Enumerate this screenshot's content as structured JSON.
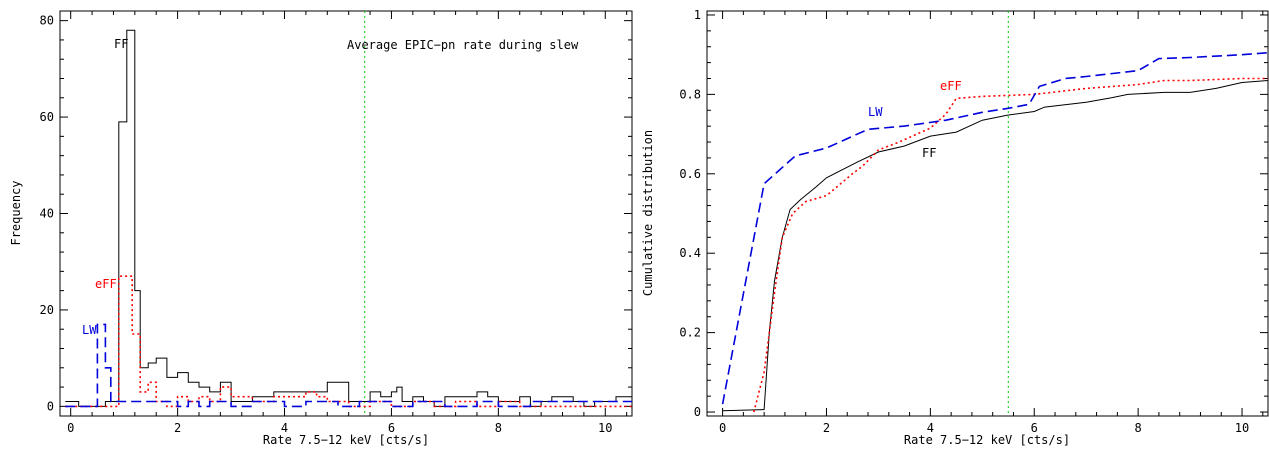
{
  "chart_data": [
    {
      "type": "histogram",
      "title": "",
      "xlabel": "Rate 7.5−12 keV [cts/s]",
      "ylabel": "Frequency",
      "xlim": [
        -0.2,
        10.5
      ],
      "ylim": [
        -2,
        82
      ],
      "x_ticks": [
        0,
        2,
        4,
        6,
        8,
        10
      ],
      "y_ticks": [
        0,
        20,
        40,
        60,
        80
      ],
      "annotation": "Average EPIC−pn rate during slew",
      "vline_x": 5.5,
      "series": [
        {
          "name": "FF",
          "color": "#000000",
          "style": "solid",
          "edges": [
            -0.1,
            0.15,
            0.65,
            0.9,
            1.05,
            1.2,
            1.3,
            1.45,
            1.6,
            1.8,
            2.0,
            2.2,
            2.4,
            2.6,
            2.8,
            3.0,
            3.4,
            3.8,
            4.8,
            5.2,
            5.6,
            5.8,
            6.0,
            6.1,
            6.2,
            6.4,
            6.6,
            6.8,
            7.0,
            7.6,
            7.8,
            8.0,
            8.4,
            8.6,
            8.8,
            9.0,
            9.4,
            9.6,
            9.8,
            10.2,
            10.5
          ],
          "values": [
            1,
            0,
            1,
            59,
            78,
            24,
            8,
            9,
            10,
            6,
            7,
            5,
            4,
            3,
            5,
            1,
            2,
            3,
            5,
            1,
            3,
            2,
            3,
            4,
            1,
            2,
            1,
            0,
            2,
            3,
            2,
            1,
            2,
            0,
            1,
            2,
            1,
            0,
            1,
            2
          ]
        },
        {
          "name": "eFF",
          "color": "#ff0000",
          "style": "dotted",
          "edges": [
            -0.1,
            0.9,
            1.15,
            1.3,
            1.45,
            1.6,
            1.8,
            2.0,
            2.2,
            2.4,
            2.6,
            2.8,
            3.0,
            3.4,
            3.8,
            4.4,
            4.6,
            4.8,
            5.2,
            5.6,
            6.0,
            6.4,
            6.8,
            7.2,
            7.6,
            8.0,
            8.4,
            10.5
          ],
          "values": [
            0,
            27,
            15,
            3,
            5,
            1,
            0,
            2,
            1,
            2,
            1,
            4,
            2,
            1,
            2,
            3,
            2,
            1,
            0,
            1,
            0,
            1,
            0,
            1,
            0,
            1,
            0
          ]
        },
        {
          "name": "LW",
          "color": "#0000dd",
          "style": "dashed",
          "edges": [
            -0.1,
            0.5,
            0.65,
            0.75,
            0.9,
            2.0,
            2.2,
            2.4,
            2.6,
            3.0,
            3.4,
            4.0,
            4.4,
            5.0,
            5.4,
            6.0,
            6.4,
            7.0,
            7.6,
            8.0,
            8.6,
            10.5
          ],
          "values": [
            0,
            17,
            8,
            1,
            1,
            0,
            1,
            0,
            1,
            0,
            1,
            0,
            1,
            0,
            1,
            0,
            1,
            0,
            1,
            0,
            1
          ]
        }
      ]
    },
    {
      "type": "line",
      "title": "",
      "xlabel": "Rate 7.5−12 keV [cts/s]",
      "ylabel": "Cumulative distribution",
      "xlim": [
        -0.3,
        10.5
      ],
      "ylim": [
        -0.01,
        1.01
      ],
      "x_ticks": [
        0,
        2,
        4,
        6,
        8,
        10
      ],
      "y_ticks": [
        0,
        0.2,
        0.4,
        0.6,
        0.8,
        1
      ],
      "vline_x": 5.5,
      "series": [
        {
          "name": "FF",
          "color": "#000000",
          "style": "solid",
          "x": [
            0,
            0.8,
            0.9,
            1.0,
            1.15,
            1.3,
            1.5,
            1.8,
            2.0,
            2.3,
            2.6,
            3.0,
            3.5,
            4.0,
            4.5,
            5.0,
            5.5,
            6.0,
            6.2,
            7.0,
            7.5,
            7.8,
            8.5,
            9.0,
            9.5,
            10.0,
            10.5
          ],
          "y": [
            0.003,
            0.006,
            0.2,
            0.33,
            0.44,
            0.51,
            0.535,
            0.567,
            0.59,
            0.61,
            0.63,
            0.655,
            0.67,
            0.695,
            0.705,
            0.735,
            0.748,
            0.757,
            0.768,
            0.78,
            0.792,
            0.8,
            0.805,
            0.805,
            0.815,
            0.83,
            0.835
          ]
        },
        {
          "name": "eFF",
          "color": "#ff0000",
          "style": "dotted",
          "x": [
            0.6,
            0.8,
            1.0,
            1.15,
            1.35,
            1.6,
            2.0,
            2.5,
            2.7,
            3.0,
            3.4,
            4.0,
            4.3,
            4.5,
            5.0,
            6.0,
            7.0,
            8.0,
            8.5,
            9.0,
            10.0,
            10.5
          ],
          "y": [
            0.0,
            0.1,
            0.3,
            0.44,
            0.5,
            0.53,
            0.545,
            0.6,
            0.62,
            0.66,
            0.68,
            0.715,
            0.75,
            0.79,
            0.795,
            0.8,
            0.815,
            0.825,
            0.835,
            0.835,
            0.84,
            0.84
          ]
        },
        {
          "name": "LW",
          "color": "#0000dd",
          "style": "dashed",
          "x": [
            0,
            0.8,
            1.4,
            2.0,
            2.8,
            3.5,
            4.3,
            5.0,
            5.5,
            5.9,
            6.1,
            6.6,
            7.0,
            8.0,
            8.2,
            8.4,
            9.0,
            10.0,
            10.5
          ],
          "y": [
            0.02,
            0.575,
            0.645,
            0.665,
            0.712,
            0.72,
            0.735,
            0.755,
            0.765,
            0.775,
            0.82,
            0.84,
            0.845,
            0.86,
            0.875,
            0.89,
            0.893,
            0.9,
            0.905
          ]
        }
      ]
    }
  ],
  "left_labels": {
    "ff": "FF",
    "eff": "eFF",
    "lw": "LW"
  },
  "right_labels": {
    "ff": "FF",
    "eff": "eFF",
    "lw": "LW"
  }
}
